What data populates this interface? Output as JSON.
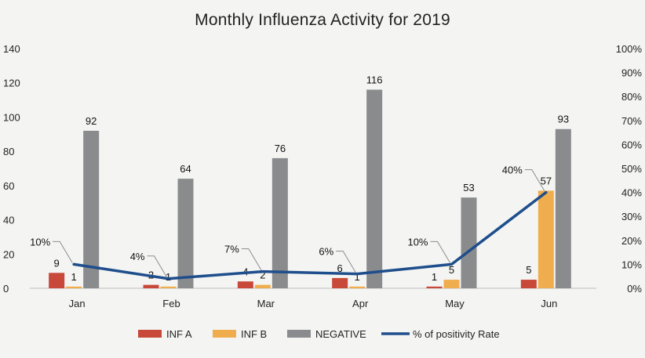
{
  "chart_data": {
    "type": "bar+line",
    "title": "Monthly Influenza Activity for 2019",
    "categories": [
      "Jan",
      "Feb",
      "Mar",
      "Apr",
      "May",
      "Jun"
    ],
    "series": [
      {
        "name": "INF A",
        "type": "bar",
        "axis": "left",
        "color": "#c8483a",
        "values": [
          9,
          2,
          4,
          6,
          1,
          5
        ],
        "labels": [
          "9",
          "2",
          "4",
          "6",
          "1",
          "5"
        ]
      },
      {
        "name": "INF B",
        "type": "bar",
        "axis": "left",
        "color": "#f0ad4e",
        "values": [
          1,
          1,
          2,
          1,
          5,
          57
        ],
        "labels": [
          "1",
          "1",
          "2",
          "1",
          "5",
          "57"
        ]
      },
      {
        "name": "NEGATIVE",
        "type": "bar",
        "axis": "left",
        "color": "#8a8b8d",
        "values": [
          92,
          64,
          76,
          116,
          53,
          93
        ],
        "labels": [
          "92",
          "64",
          "76",
          "116",
          "53",
          "93"
        ]
      },
      {
        "name": "% of positivity Rate",
        "type": "line",
        "axis": "right",
        "color": "#1f4e8c",
        "values": [
          10,
          4,
          7,
          6,
          10,
          40
        ],
        "labels": [
          "10%",
          "4%",
          "7%",
          "6%",
          "10%",
          "40%"
        ]
      }
    ],
    "y_left": {
      "min": 0,
      "max": 140,
      "ticks": [
        "0",
        "20",
        "40",
        "60",
        "80",
        "100",
        "120",
        "140"
      ]
    },
    "y_right": {
      "min": 0,
      "max": 100,
      "ticks": [
        "0%",
        "10%",
        "20%",
        "30%",
        "40%",
        "50%",
        "60%",
        "70%",
        "80%",
        "90%",
        "100%"
      ]
    },
    "grid": false,
    "legend_position": "bottom"
  }
}
